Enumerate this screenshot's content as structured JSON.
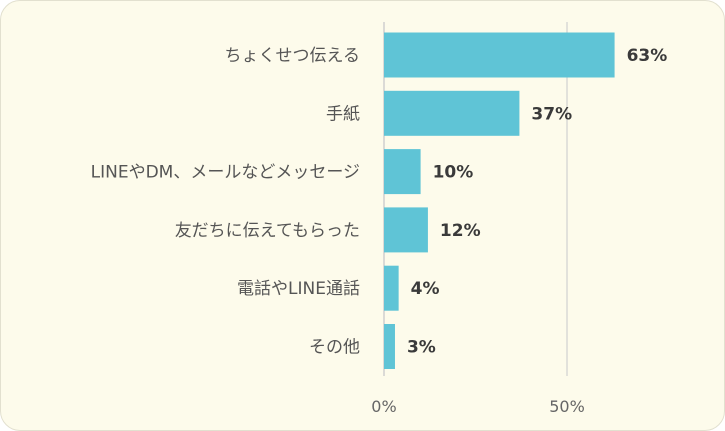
{
  "chart_data": {
    "type": "bar",
    "orientation": "horizontal",
    "categories": [
      "ちょくせつ伝える",
      "手紙",
      "LINEやDM、メールなどメッセージ",
      "友だちに伝えてもらった",
      "電話やLINE通話",
      "その他"
    ],
    "values": [
      63,
      37,
      10,
      12,
      4,
      3
    ],
    "value_labels": [
      "63%",
      "37%",
      "10%",
      "12%",
      "4%",
      "3%"
    ],
    "xticks": [
      0,
      50
    ],
    "xtick_labels": [
      "0%",
      "50%"
    ],
    "xlim": [
      0,
      100
    ],
    "grid": true,
    "legend": "none",
    "bar_color": "#5fc4d6",
    "grid_color": "#d0d0d0",
    "background_color": "#fdfbeb"
  }
}
